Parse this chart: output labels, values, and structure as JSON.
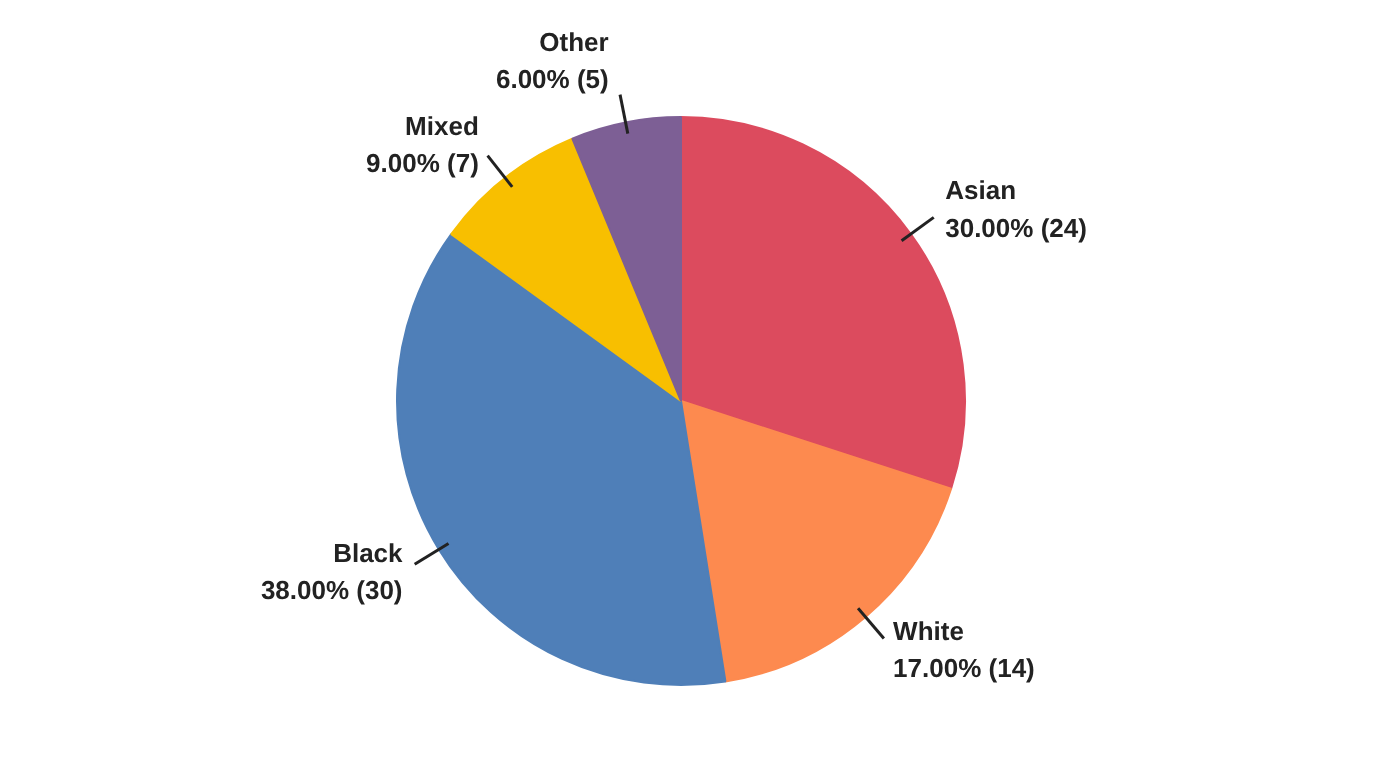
{
  "chart_data": {
    "type": "pie",
    "categories": [
      "Asian",
      "White",
      "Black",
      "Mixed",
      "Other"
    ],
    "values": [
      24,
      14,
      30,
      7,
      5
    ],
    "colors": [
      "#dc4b5e",
      "#fd8a4f",
      "#4f7fb8",
      "#f8bf00",
      "#7d5f95"
    ],
    "value_labels": [
      "30.00% (24)",
      "17.00% (14)",
      "38.00% (30)",
      "9.00% (7)",
      "6.00% (5)"
    ],
    "legend": false
  }
}
